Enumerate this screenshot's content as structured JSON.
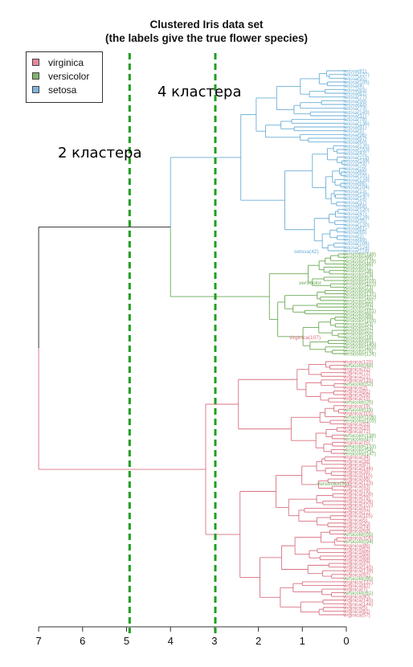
{
  "title": {
    "line1": "Clustered Iris data set",
    "line2": "(the labels give the true flower species)"
  },
  "legend": [
    {
      "label": "virginica",
      "color": "#e8879a"
    },
    {
      "label": "versicolor",
      "color": "#7fb36a"
    },
    {
      "label": "setosa",
      "color": "#7fb4e0"
    }
  ],
  "annotations": {
    "four_clusters": "4 кластера",
    "two_clusters": "2 кластера"
  },
  "colors": {
    "setosa": "#6baed6",
    "versicolor": "#6aaa55",
    "virginica": "#d9707f",
    "root": "#222222",
    "cut_line": "#1f9e1f"
  },
  "chart_data": {
    "type": "dendrogram",
    "orientation": "horizontal, root on left, height axis reversed",
    "xlim": [
      7,
      0
    ],
    "x_ticks": [
      7,
      6,
      5,
      4,
      3,
      2,
      1,
      0
    ],
    "cut_heights": [
      4.93,
      2.98
    ],
    "merge_heights": {
      "root": 7.0,
      "setosa_versicolor": 4.0,
      "virginica_group": 3.2,
      "setosa_cluster": 2.4,
      "versicolor_cluster": 1.75
    },
    "clusters": [
      {
        "species": "setosa",
        "leaf_count": 49
      },
      {
        "species": "versicolor",
        "leaf_count": 31
      },
      {
        "species": "virginica",
        "leaf_count": 70
      }
    ],
    "visible_leaf_labels": [
      "setosa(42)",
      "versicolor",
      "virginica(107)",
      "versicolor(71)"
    ]
  }
}
